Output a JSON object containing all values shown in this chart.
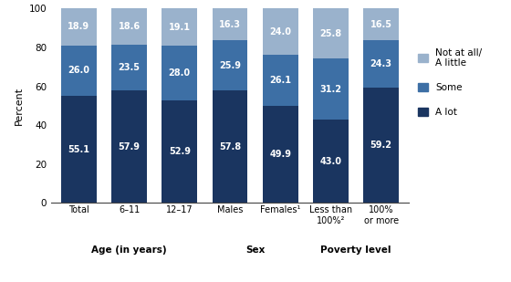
{
  "categories": [
    "Total",
    "6–11",
    "12–17",
    "Males",
    "Females¹",
    "Less than\n100%²",
    "100%\nor more"
  ],
  "a_lot": [
    55.1,
    57.9,
    52.9,
    57.8,
    49.9,
    43.0,
    59.2
  ],
  "some": [
    26.0,
    23.5,
    28.0,
    25.9,
    26.1,
    31.2,
    24.3
  ],
  "not_at_all": [
    18.9,
    18.6,
    19.1,
    16.3,
    24.0,
    25.8,
    16.5
  ],
  "color_a_lot": "#1a3560",
  "color_some": "#3d6fa5",
  "color_not_at_all": "#9ab2cc",
  "ylabel": "Percent",
  "ylim": [
    0,
    100
  ],
  "yticks": [
    0,
    20,
    40,
    60,
    80,
    100
  ],
  "group_labels": [
    "Age (in years)",
    "Sex",
    "Poverty level"
  ],
  "legend_labels": [
    "Not at all/\nA little",
    "Some",
    "A lot"
  ],
  "background_color": "#ffffff",
  "bar_width": 0.7,
  "label_fontsize": 7.0
}
